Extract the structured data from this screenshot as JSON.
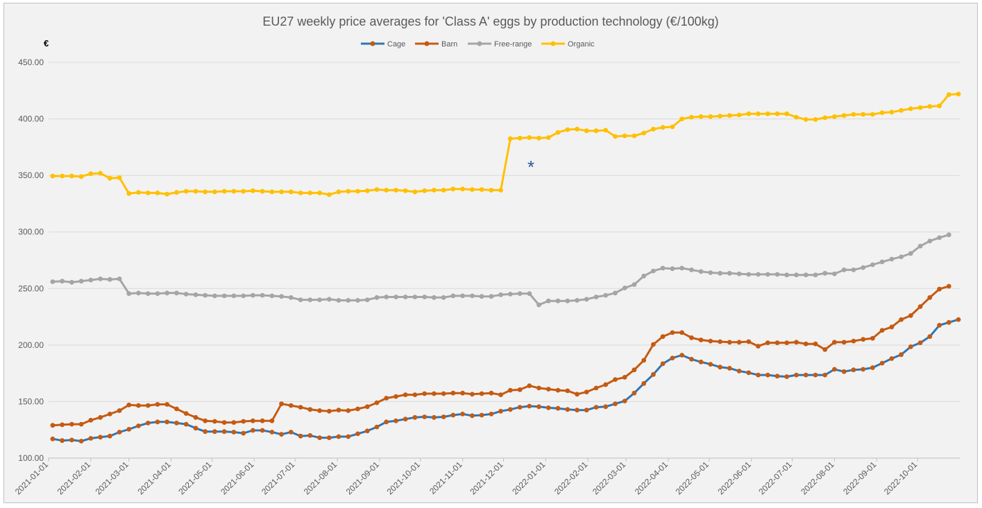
{
  "chart_data": {
    "type": "line",
    "title": "EU27 weekly price averages for 'Class A' eggs by production technology (€/100kg)",
    "ylabel": "€",
    "xlabel": "",
    "ylim": [
      100,
      450
    ],
    "yticks": [
      "100.00",
      "150.00",
      "200.00",
      "250.00",
      "300.00",
      "350.00",
      "400.00",
      "450.00"
    ],
    "x_start": "2021-01-04",
    "x_tick_labels": [
      "2021-01-01",
      "2021-02-01",
      "2021-03-01",
      "2021-04-01",
      "2021-05-01",
      "2021-06-01",
      "2021-07-01",
      "2021-08-01",
      "2021-09-01",
      "2021-10-01",
      "2021-11-01",
      "2021-12-01",
      "2022-01-01",
      "2022-02-01",
      "2022-03-01",
      "2022-04-01",
      "2022-05-01",
      "2022-06-01",
      "2022-07-01",
      "2022-08-01",
      "2022-09-01",
      "2022-10-01"
    ],
    "grid": "horizontal",
    "legend_position": "top",
    "annotation": "*",
    "series": [
      {
        "name": "Cage",
        "color": "#2e75b6",
        "marker_color": "#c55a11",
        "values": [
          117,
          115.5,
          116,
          115,
          117.5,
          118.5,
          119.5,
          123,
          125.5,
          128.5,
          131,
          132,
          132,
          131,
          130,
          126.5,
          123.5,
          123.5,
          123.5,
          123,
          122,
          124.5,
          124.5,
          123,
          121,
          123,
          119.5,
          120,
          118,
          118,
          119,
          119,
          121.5,
          124,
          127.5,
          132,
          133,
          134.5,
          136,
          136.5,
          136,
          136.5,
          138,
          139,
          137.5,
          138,
          139,
          141.5,
          143,
          145,
          146,
          145.5,
          144.5,
          144,
          143,
          142.5,
          142.5,
          145,
          145.5,
          148,
          150.5,
          157.5,
          166,
          174,
          183.5,
          188.5,
          191,
          187.5,
          185,
          183,
          180.5,
          179.5,
          177,
          175.5,
          173.5,
          173.5,
          172.5,
          172,
          173.5,
          173.5,
          173.5,
          173.5,
          178.5,
          176.5,
          178,
          178.5,
          180,
          184,
          188,
          191.5,
          198.5,
          202,
          207.5,
          217.5,
          220,
          222.5
        ]
      },
      {
        "name": "Barn",
        "color": "#c55a11",
        "marker_color": "#c55a11",
        "values": [
          129,
          129.5,
          130,
          130,
          133.5,
          136,
          139,
          142,
          147,
          146.5,
          146.5,
          147.5,
          147.5,
          143.5,
          139.5,
          136,
          133,
          132.5,
          131.5,
          131.5,
          132.5,
          133,
          133,
          133,
          148,
          146.5,
          145,
          143,
          142,
          141.5,
          142.5,
          142,
          143.5,
          145.5,
          149,
          153,
          154.5,
          156,
          156,
          157,
          157,
          157,
          157.5,
          157.5,
          156.5,
          157,
          157.5,
          156,
          160,
          160.5,
          164,
          162,
          161,
          160,
          159.5,
          156.5,
          158.5,
          162,
          165,
          169.5,
          171.5,
          178,
          186.5,
          200.5,
          207.5,
          211,
          211,
          206.5,
          204.5,
          203.5,
          203,
          202.5,
          202.5,
          203,
          199,
          202,
          202,
          202,
          202.5,
          201,
          201,
          196,
          202.5,
          202.5,
          203.5,
          205,
          206,
          213,
          216,
          222.5,
          226,
          234,
          242,
          249.5,
          252
        ]
      },
      {
        "name": "Free-range",
        "color": "#a5a5a5",
        "marker_color": "#a5a5a5",
        "values": [
          256,
          256.5,
          255.5,
          256.5,
          257.5,
          258.5,
          258,
          258.5,
          245.5,
          246,
          245.5,
          245.5,
          246,
          246,
          245,
          244.5,
          244,
          243.5,
          243.5,
          243.5,
          243.5,
          244,
          244,
          243.5,
          243,
          242,
          240,
          240,
          240,
          240.5,
          239.5,
          239.5,
          239.5,
          240,
          242,
          242.5,
          242.5,
          242.5,
          242.5,
          242.5,
          242,
          242,
          243.5,
          243.5,
          243.5,
          243,
          243,
          244.5,
          245,
          245.5,
          245.5,
          235.5,
          239,
          239,
          239,
          239.5,
          240.5,
          242.5,
          244,
          246,
          250.5,
          253.5,
          261,
          265.5,
          268,
          267.5,
          268,
          266.5,
          265,
          264,
          263.5,
          263.5,
          263,
          262.5,
          262.5,
          262.5,
          262.5,
          262,
          262,
          262,
          262,
          263.5,
          263,
          266.5,
          266.5,
          268.5,
          271,
          273.5,
          276,
          278,
          281,
          287.5,
          292,
          295,
          297.5
        ]
      },
      {
        "name": "Organic",
        "color": "#ffc000",
        "marker_color": "#ffc000",
        "values": [
          349.5,
          349.5,
          349.5,
          349,
          351.5,
          352,
          347.5,
          348,
          334,
          335,
          334.5,
          334.5,
          333.5,
          335,
          336,
          336,
          335.5,
          335.5,
          336,
          336,
          336,
          336.5,
          336,
          335.5,
          335.5,
          335.5,
          334.5,
          334.5,
          334.5,
          333,
          335.5,
          336,
          336,
          336.5,
          337.5,
          337,
          337,
          336.5,
          335.5,
          336.5,
          337,
          337,
          338,
          338,
          337.5,
          337.5,
          337,
          337,
          382.5,
          383,
          383.5,
          383,
          383.5,
          388,
          390.5,
          391,
          389.5,
          389.5,
          390,
          384.5,
          385,
          385,
          387.5,
          391,
          392.5,
          393,
          400,
          401.5,
          402,
          402,
          402.5,
          403,
          403.5,
          404.5,
          404.5,
          404.5,
          404.5,
          404.5,
          401.5,
          399.5,
          399.5,
          401,
          402,
          403,
          404,
          404,
          404,
          405.5,
          406,
          407.5,
          409,
          410,
          411,
          411.5,
          421.5,
          422
        ]
      }
    ]
  }
}
